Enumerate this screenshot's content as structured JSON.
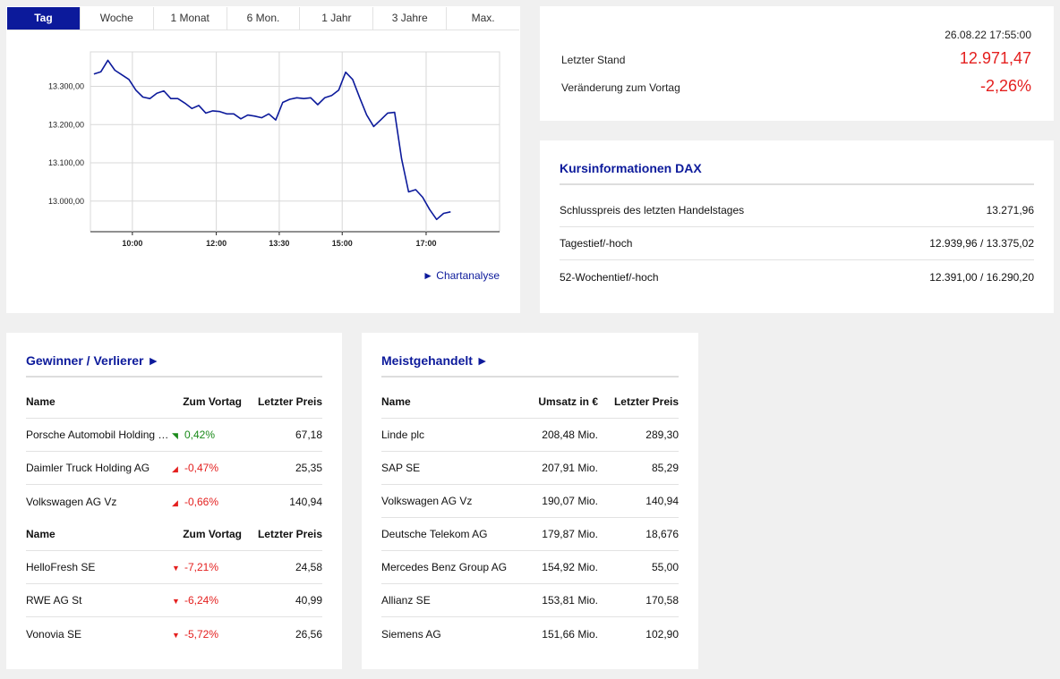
{
  "chart_tabs": [
    "Tag",
    "Woche",
    "1 Monat",
    "6 Mon.",
    "1 Jahr",
    "3 Jahre",
    "Max."
  ],
  "chart_link": "Chartanalyse",
  "chart_data": {
    "type": "line",
    "title": "",
    "xlabel": "",
    "ylabel": "",
    "x_ticks": [
      "10:00",
      "12:00",
      "13:30",
      "15:00",
      "17:00"
    ],
    "y_ticks": [
      "13.000,00",
      "13.100,00",
      "13.200,00",
      "13.300,00"
    ],
    "ylim": [
      12920,
      13390
    ],
    "xlim": [
      "09:00",
      "18:45"
    ],
    "grid": true,
    "series": [
      {
        "name": "",
        "x": [
          "09:05",
          "09:15",
          "09:25",
          "09:35",
          "09:45",
          "09:55",
          "10:05",
          "10:15",
          "10:25",
          "10:35",
          "10:45",
          "10:55",
          "11:05",
          "11:15",
          "11:25",
          "11:35",
          "11:45",
          "11:55",
          "12:05",
          "12:15",
          "12:25",
          "12:35",
          "12:45",
          "12:55",
          "13:05",
          "13:15",
          "13:25",
          "13:35",
          "13:45",
          "13:55",
          "14:05",
          "14:15",
          "14:25",
          "14:35",
          "14:45",
          "14:55",
          "15:05",
          "15:15",
          "15:25",
          "15:35",
          "15:45",
          "15:55",
          "16:05",
          "16:15",
          "16:25",
          "16:35",
          "16:45",
          "16:55",
          "17:05",
          "17:15",
          "17:25",
          "17:35"
        ],
        "y": [
          13332,
          13338,
          13368,
          13342,
          13330,
          13318,
          13290,
          13272,
          13268,
          13282,
          13288,
          13268,
          13268,
          13256,
          13242,
          13250,
          13230,
          13236,
          13234,
          13228,
          13228,
          13215,
          13225,
          13222,
          13218,
          13228,
          13212,
          13258,
          13266,
          13270,
          13268,
          13270,
          13252,
          13270,
          13276,
          13290,
          13337,
          13318,
          13270,
          13225,
          13195,
          13212,
          13230,
          13232,
          13110,
          13024,
          13030,
          13010,
          12978,
          12952,
          12968,
          12972
        ]
      }
    ]
  },
  "quote": {
    "time": "26.08.22 17:55:00",
    "last_label": "Letzter Stand",
    "last_value": "12.971,47",
    "change_label": "Veränderung zum Vortag",
    "change_value": "-2,26%"
  },
  "info": {
    "title": "Kursinformationen DAX",
    "rows": [
      {
        "label": "Schlusspreis des letzten Handelstages",
        "value": "13.271,96"
      },
      {
        "label": "Tagestief/-hoch",
        "value": "12.939,96 / 13.375,02"
      },
      {
        "label": "52-Wochentief/-hoch",
        "value": "12.391,00 / 16.290,20"
      }
    ]
  },
  "gv": {
    "title": "Gewinner / Verlierer ►",
    "headers": {
      "name": "Name",
      "change": "Zum Vortag",
      "price": "Letzter Preis"
    },
    "winners": [
      {
        "name": "Porsche Automobil Holding SE",
        "arrow": "◥",
        "change": "0,42%",
        "price": "67,18",
        "dir": "pos"
      },
      {
        "name": "Daimler Truck Holding AG",
        "arrow": "◢",
        "change": "-0,47%",
        "price": "25,35",
        "dir": "neg"
      },
      {
        "name": "Volkswagen AG Vz",
        "arrow": "◢",
        "change": "-0,66%",
        "price": "140,94",
        "dir": "neg"
      }
    ],
    "losers": [
      {
        "name": "HelloFresh SE",
        "arrow": "▼",
        "change": "-7,21%",
        "price": "24,58",
        "dir": "neg"
      },
      {
        "name": "RWE AG St",
        "arrow": "▼",
        "change": "-6,24%",
        "price": "40,99",
        "dir": "neg"
      },
      {
        "name": "Vonovia SE",
        "arrow": "▼",
        "change": "-5,72%",
        "price": "26,56",
        "dir": "neg"
      }
    ]
  },
  "mg": {
    "title": "Meistgehandelt ►",
    "headers": {
      "name": "Name",
      "turnover": "Umsatz in €",
      "price": "Letzter Preis"
    },
    "rows": [
      {
        "name": "Linde plc",
        "turnover": "208,48 Mio.",
        "price": "289,30"
      },
      {
        "name": "SAP SE",
        "turnover": "207,91 Mio.",
        "price": "85,29"
      },
      {
        "name": "Volkswagen AG Vz",
        "turnover": "190,07 Mio.",
        "price": "140,94"
      },
      {
        "name": "Deutsche Telekom AG",
        "turnover": "179,87 Mio.",
        "price": "18,676"
      },
      {
        "name": "Mercedes Benz Group AG",
        "turnover": "154,92 Mio.",
        "price": "55,00"
      },
      {
        "name": "Allianz SE",
        "turnover": "153,81 Mio.",
        "price": "170,58"
      },
      {
        "name": "Siemens AG",
        "turnover": "151,66 Mio.",
        "price": "102,90"
      }
    ]
  },
  "colors": {
    "accent": "#0c1a9b",
    "negative": "#e4201f",
    "positive": "#1a8a1a",
    "line": "#0c1a9b"
  }
}
